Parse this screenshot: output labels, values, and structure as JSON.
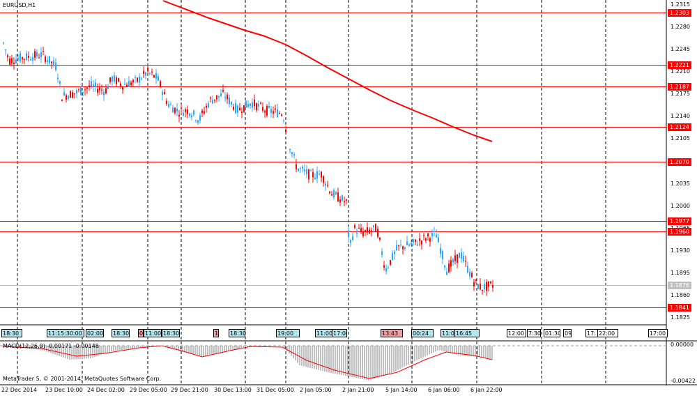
{
  "symbol_title": "EURUSD,H1",
  "macd_title": "MACD(12,26,9) -0.00171 -0.00148",
  "copyright": "MetaTrader 5, © 2001-2014, MetaQuotes Software Corp.",
  "price_axis": [
    "1.2315",
    "1.2280",
    "1.2245",
    "1.2210",
    "1.2175",
    "1.2140",
    "1.2105",
    "1.2070",
    "1.2035",
    "1.2000",
    "1.1965",
    "1.1930",
    "1.1895",
    "1.1860",
    "1.1825"
  ],
  "price_lines": [
    {
      "label": "1.2303",
      "price": 1.2303
    },
    {
      "label": "1.2221",
      "price": 1.2221
    },
    {
      "label": "1.2187",
      "price": 1.2187
    },
    {
      "label": "1.2124",
      "price": 1.2124
    },
    {
      "label": "1.2070",
      "price": 1.207
    },
    {
      "label": "1.1977",
      "price": 1.1977
    },
    {
      "label": "1.1960",
      "price": 1.196
    },
    {
      "label": "1.1841",
      "price": 1.1841
    }
  ],
  "current_price": {
    "label": "1.1876",
    "price": 1.1876
  },
  "macd_axis": [
    "0.00000",
    "-0.00422"
  ],
  "macd_values": {
    "zero": "0.00000",
    "min": "-0.00422"
  },
  "time_axis": [
    "22 Dec 2014",
    "23 Dec 10:00",
    "24 Dec 02:00",
    "29 Dec 05:00",
    "29 Dec 21:00",
    "30 Dec 13:00",
    "31 Dec 05:00",
    "2 Jan 05:00",
    "2 Jan 21:00",
    "5 Jan 14:00",
    "6 Jan 06:00",
    "6 Jan 22:00"
  ],
  "events": [
    {
      "label": "18:30",
      "color": "blue"
    },
    {
      "label": "11:15:30:00",
      "color": "blue"
    },
    {
      "label": "02:00",
      "color": "blue"
    },
    {
      "label": "18:30",
      "color": "blue"
    },
    {
      "label": "0",
      "color": "red"
    },
    {
      "label": "11:00",
      "color": "blue"
    },
    {
      "label": "18:30",
      "color": "blue"
    },
    {
      "label": "1",
      "color": "red"
    },
    {
      "label": "18:30",
      "color": "blue"
    },
    {
      "label": "19:00",
      "color": "blue"
    },
    {
      "label": "11:00",
      "color": "blue"
    },
    {
      "label": "17:00",
      "color": "blue"
    },
    {
      "label": "13:43",
      "color": "red"
    },
    {
      "label": "00:24",
      "color": "blue"
    },
    {
      "label": "11:00",
      "color": "blue"
    },
    {
      "label": "16:45",
      "color": "blue"
    },
    {
      "label": "12:00",
      "color": "plain"
    },
    {
      "label": "7:30",
      "color": "plain"
    },
    {
      "label": "01:30",
      "color": "plain"
    },
    {
      "label": "09",
      "color": "plain"
    },
    {
      "label": "17:",
      "color": "plain"
    },
    {
      "label": "22:00",
      "color": "plain"
    },
    {
      "label": "17:00",
      "color": "plain"
    }
  ],
  "colors": {
    "bull": "#2aa8ff",
    "bear": "#ff0000",
    "ma": "#ff0000",
    "grid": "#000000",
    "level": "#ff0000"
  }
}
